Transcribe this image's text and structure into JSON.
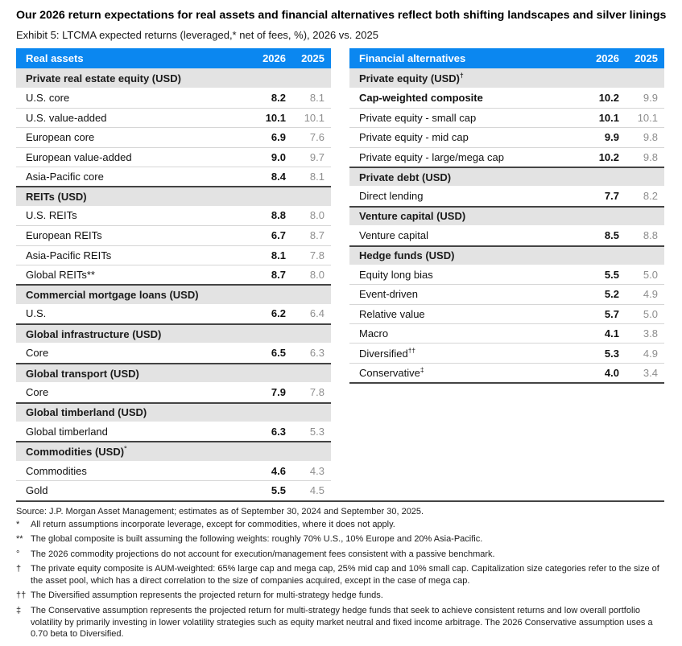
{
  "page": {
    "title": "Our 2026 return expectations for real assets and financial alternatives reflect both shifting landscapes and silver linings",
    "subtitle": "Exhibit 5: LTCMA expected returns (leveraged,* net of fees, %), 2026 vs. 2025"
  },
  "colors": {
    "blue": "#0b87f0",
    "section-bg": "#e3e3e3",
    "dark-rule": "#444444",
    "row-rule": "#d6d6d6",
    "value-2025": "#8e8e8e"
  },
  "tables": [
    {
      "id": "real-assets",
      "header": {
        "label": "Real assets",
        "col2026": "2026",
        "col2025": "2025"
      },
      "rows": [
        {
          "type": "section",
          "label": "Private real estate equity (USD)",
          "sup": ""
        },
        {
          "type": "data",
          "label": "U.S. core",
          "v2026": "8.2",
          "v2025": "8.1"
        },
        {
          "type": "data",
          "label": "U.S. value-added",
          "v2026": "10.1",
          "v2025": "10.1"
        },
        {
          "type": "data",
          "label": "European core",
          "v2026": "6.9",
          "v2025": "7.6"
        },
        {
          "type": "data",
          "label": "European value-added",
          "v2026": "9.0",
          "v2025": "9.7"
        },
        {
          "type": "data",
          "label": "Asia-Pacific core",
          "v2026": "8.4",
          "v2025": "8.1"
        },
        {
          "type": "section",
          "label": "REITs (USD)",
          "sup": ""
        },
        {
          "type": "data",
          "label": "U.S. REITs",
          "v2026": "8.8",
          "v2025": "8.0"
        },
        {
          "type": "data",
          "label": "European REITs",
          "v2026": "6.7",
          "v2025": "8.7"
        },
        {
          "type": "data",
          "label": "Asia-Pacific REITs",
          "v2026": "8.1",
          "v2025": "7.8"
        },
        {
          "type": "data",
          "label": "Global REITs**",
          "v2026": "8.7",
          "v2025": "8.0"
        },
        {
          "type": "section",
          "label": "Commercial mortgage loans (USD)",
          "sup": ""
        },
        {
          "type": "data",
          "label": "U.S.",
          "v2026": "6.2",
          "v2025": "6.4"
        },
        {
          "type": "section",
          "label": "Global infrastructure (USD)",
          "sup": ""
        },
        {
          "type": "data",
          "label": "Core",
          "v2026": "6.5",
          "v2025": "6.3"
        },
        {
          "type": "section",
          "label": "Global transport (USD)",
          "sup": ""
        },
        {
          "type": "data",
          "label": "Core",
          "v2026": "7.9",
          "v2025": "7.8"
        },
        {
          "type": "section",
          "label": "Global timberland (USD)",
          "sup": ""
        },
        {
          "type": "data",
          "label": "Global timberland",
          "v2026": "6.3",
          "v2025": "5.3"
        },
        {
          "type": "section",
          "label": "Commodities (USD)",
          "sup": "°"
        },
        {
          "type": "data",
          "label": "Commodities",
          "v2026": "4.6",
          "v2025": "4.3"
        },
        {
          "type": "data",
          "label": "Gold",
          "v2026": "5.5",
          "v2025": "4.5"
        }
      ]
    },
    {
      "id": "financial-alternatives",
      "header": {
        "label": "Financial alternatives",
        "col2026": "2026",
        "col2025": "2025"
      },
      "rows": [
        {
          "type": "section",
          "label": "Private equity (USD)",
          "sup": "†"
        },
        {
          "type": "data",
          "label": "Cap-weighted composite",
          "bold": true,
          "v2026": "10.2",
          "v2025": "9.9"
        },
        {
          "type": "data",
          "label": "Private equity - small cap",
          "v2026": "10.1",
          "v2025": "10.1"
        },
        {
          "type": "data",
          "label": "Private equity - mid cap",
          "v2026": "9.9",
          "v2025": "9.8"
        },
        {
          "type": "data",
          "label": "Private equity - large/mega cap",
          "v2026": "10.2",
          "v2025": "9.8"
        },
        {
          "type": "section",
          "label": "Private debt (USD)",
          "sup": ""
        },
        {
          "type": "data",
          "label": "Direct lending",
          "v2026": "7.7",
          "v2025": "8.2"
        },
        {
          "type": "section",
          "label": "Venture capital (USD)",
          "sup": ""
        },
        {
          "type": "data",
          "label": "Venture capital",
          "v2026": "8.5",
          "v2025": "8.8"
        },
        {
          "type": "section",
          "label": "Hedge funds (USD)",
          "sup": ""
        },
        {
          "type": "data",
          "label": "Equity long bias",
          "v2026": "5.5",
          "v2025": "5.0"
        },
        {
          "type": "data",
          "label": "Event-driven",
          "v2026": "5.2",
          "v2025": "4.9"
        },
        {
          "type": "data",
          "label": "Relative value",
          "v2026": "5.7",
          "v2025": "5.0"
        },
        {
          "type": "data",
          "label": "Macro",
          "v2026": "4.1",
          "v2025": "3.8"
        },
        {
          "type": "data",
          "label": "Diversified",
          "sup": "††",
          "v2026": "5.3",
          "v2025": "4.9"
        },
        {
          "type": "data",
          "label": "Conservative",
          "sup": "‡",
          "v2026": "4.0",
          "v2025": "3.4"
        }
      ]
    }
  ],
  "footer": {
    "source": "Source: J.P. Morgan Asset Management; estimates as of September 30, 2024 and September 30, 2025.",
    "footnotes": [
      {
        "marker": "*",
        "text": "All return assumptions incorporate leverage, except for commodities, where it does not apply."
      },
      {
        "marker": "**",
        "text": "The global composite is built assuming the following weights: roughly 70% U.S., 10% Europe and 20% Asia-Pacific."
      },
      {
        "marker": "°",
        "text": "The 2026 commodity projections do not account for execution/management fees consistent with a passive benchmark."
      },
      {
        "marker": "†",
        "text": "The private equity composite is AUM-weighted: 65% large cap and mega cap, 25% mid cap and 10% small cap. Capitalization size categories refer to the size of the asset pool, which has a direct correlation to the size of companies acquired, except in the case of mega cap."
      },
      {
        "marker": "††",
        "text": "The Diversified assumption represents the projected return for multi-strategy hedge funds."
      },
      {
        "marker": "‡",
        "text": "The Conservative assumption represents the projected return for multi-strategy hedge funds that seek to achieve consistent returns and low overall portfolio volatility by primarily investing in lower volatility strategies such as equity market neutral and fixed income arbitrage. The 2026 Conservative assumption uses a 0.70 beta to Diversified."
      }
    ]
  }
}
